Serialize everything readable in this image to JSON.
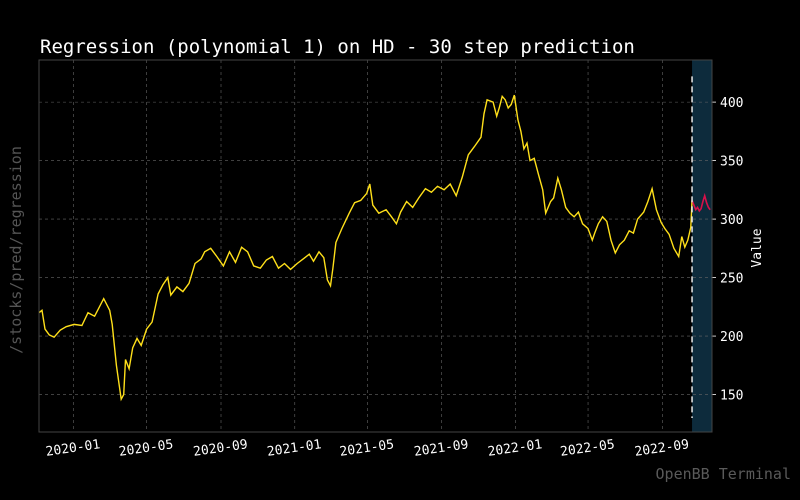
{
  "chart_data": {
    "type": "line",
    "title": "Regression (polynomial 1) on HD - 30 step prediction",
    "xlabel": "",
    "ylabel": "Value",
    "y_axis_position": "right",
    "ylim": [
      118,
      436
    ],
    "xlim": [
      "2019-11-05",
      "2022-11-22"
    ],
    "x_ticks": [
      "2020-01",
      "2020-05",
      "2020-09",
      "2021-01",
      "2021-05",
      "2021-09",
      "2022-01",
      "2022-05",
      "2022-09"
    ],
    "y_ticks": [
      150,
      200,
      250,
      300,
      350,
      400
    ],
    "grid": true,
    "prediction_start": "2022-10-20",
    "colors": {
      "background": "#000000",
      "history": "#ffe01a",
      "prediction": "#d8104a",
      "forecast_band": "#0d2b3c",
      "grid": "#555555",
      "text": "#ffffff",
      "watermark": "#5a5a5a"
    },
    "series": [
      {
        "role": "history",
        "points": [
          [
            "2019-11-05",
            220
          ],
          [
            "2019-11-10",
            222
          ],
          [
            "2019-11-15",
            206
          ],
          [
            "2019-11-22",
            201
          ],
          [
            "2019-11-30",
            199
          ],
          [
            "2019-12-10",
            205
          ],
          [
            "2019-12-20",
            208
          ],
          [
            "2020-01-02",
            210
          ],
          [
            "2020-01-15",
            209
          ],
          [
            "2020-01-25",
            220
          ],
          [
            "2020-02-05",
            217
          ],
          [
            "2020-02-20",
            232
          ],
          [
            "2020-03-01",
            222
          ],
          [
            "2020-03-05",
            210
          ],
          [
            "2020-03-12",
            175
          ],
          [
            "2020-03-20",
            146
          ],
          [
            "2020-03-24",
            150
          ],
          [
            "2020-03-27",
            180
          ],
          [
            "2020-04-02",
            172
          ],
          [
            "2020-04-08",
            190
          ],
          [
            "2020-04-15",
            198
          ],
          [
            "2020-04-22",
            192
          ],
          [
            "2020-05-01",
            206
          ],
          [
            "2020-05-10",
            212
          ],
          [
            "2020-05-20",
            236
          ],
          [
            "2020-05-28",
            244
          ],
          [
            "2020-06-05",
            250
          ],
          [
            "2020-06-10",
            235
          ],
          [
            "2020-06-20",
            242
          ],
          [
            "2020-06-30",
            238
          ],
          [
            "2020-07-10",
            245
          ],
          [
            "2020-07-20",
            262
          ],
          [
            "2020-07-30",
            266
          ],
          [
            "2020-08-05",
            272
          ],
          [
            "2020-08-15",
            275
          ],
          [
            "2020-08-25",
            268
          ],
          [
            "2020-09-05",
            260
          ],
          [
            "2020-09-15",
            272
          ],
          [
            "2020-09-25",
            263
          ],
          [
            "2020-10-05",
            276
          ],
          [
            "2020-10-15",
            272
          ],
          [
            "2020-10-25",
            260
          ],
          [
            "2020-11-05",
            258
          ],
          [
            "2020-11-15",
            265
          ],
          [
            "2020-11-25",
            268
          ],
          [
            "2020-12-05",
            258
          ],
          [
            "2020-12-15",
            262
          ],
          [
            "2020-12-25",
            257
          ],
          [
            "2021-01-05",
            262
          ],
          [
            "2021-01-15",
            266
          ],
          [
            "2021-01-25",
            270
          ],
          [
            "2021-02-01",
            264
          ],
          [
            "2021-02-10",
            272
          ],
          [
            "2021-02-18",
            267
          ],
          [
            "2021-02-24",
            248
          ],
          [
            "2021-03-01",
            243
          ],
          [
            "2021-03-05",
            258
          ],
          [
            "2021-03-10",
            280
          ],
          [
            "2021-03-20",
            292
          ],
          [
            "2021-04-01",
            305
          ],
          [
            "2021-04-10",
            314
          ],
          [
            "2021-04-20",
            316
          ],
          [
            "2021-04-30",
            322
          ],
          [
            "2021-05-05",
            330
          ],
          [
            "2021-05-10",
            312
          ],
          [
            "2021-05-20",
            305
          ],
          [
            "2021-06-01",
            308
          ],
          [
            "2021-06-10",
            302
          ],
          [
            "2021-06-18",
            296
          ],
          [
            "2021-06-25",
            306
          ],
          [
            "2021-07-05",
            315
          ],
          [
            "2021-07-15",
            310
          ],
          [
            "2021-07-25",
            318
          ],
          [
            "2021-08-05",
            326
          ],
          [
            "2021-08-15",
            323
          ],
          [
            "2021-08-25",
            328
          ],
          [
            "2021-09-05",
            325
          ],
          [
            "2021-09-15",
            330
          ],
          [
            "2021-09-25",
            320
          ],
          [
            "2021-10-05",
            336
          ],
          [
            "2021-10-15",
            355
          ],
          [
            "2021-10-25",
            362
          ],
          [
            "2021-11-05",
            370
          ],
          [
            "2021-11-10",
            390
          ],
          [
            "2021-11-15",
            402
          ],
          [
            "2021-11-25",
            400
          ],
          [
            "2021-12-01",
            388
          ],
          [
            "2021-12-05",
            395
          ],
          [
            "2021-12-10",
            405
          ],
          [
            "2021-12-15",
            402
          ],
          [
            "2021-12-20",
            395
          ],
          [
            "2021-12-25",
            398
          ],
          [
            "2021-12-30",
            406
          ],
          [
            "2022-01-05",
            385
          ],
          [
            "2022-01-10",
            375
          ],
          [
            "2022-01-15",
            360
          ],
          [
            "2022-01-20",
            365
          ],
          [
            "2022-01-25",
            350
          ],
          [
            "2022-02-01",
            352
          ],
          [
            "2022-02-08",
            338
          ],
          [
            "2022-02-15",
            325
          ],
          [
            "2022-02-20",
            305
          ],
          [
            "2022-02-28",
            315
          ],
          [
            "2022-03-05",
            318
          ],
          [
            "2022-03-12",
            335
          ],
          [
            "2022-03-18",
            325
          ],
          [
            "2022-03-25",
            310
          ],
          [
            "2022-04-01",
            305
          ],
          [
            "2022-04-08",
            302
          ],
          [
            "2022-04-15",
            306
          ],
          [
            "2022-04-22",
            296
          ],
          [
            "2022-05-01",
            292
          ],
          [
            "2022-05-08",
            282
          ],
          [
            "2022-05-12",
            288
          ],
          [
            "2022-05-18",
            296
          ],
          [
            "2022-05-25",
            302
          ],
          [
            "2022-06-01",
            298
          ],
          [
            "2022-06-08",
            282
          ],
          [
            "2022-06-15",
            271
          ],
          [
            "2022-06-22",
            278
          ],
          [
            "2022-06-30",
            282
          ],
          [
            "2022-07-08",
            290
          ],
          [
            "2022-07-15",
            288
          ],
          [
            "2022-07-22",
            300
          ],
          [
            "2022-08-01",
            306
          ],
          [
            "2022-08-08",
            315
          ],
          [
            "2022-08-15",
            326
          ],
          [
            "2022-08-22",
            308
          ],
          [
            "2022-08-30",
            297
          ],
          [
            "2022-09-05",
            292
          ],
          [
            "2022-09-12",
            287
          ],
          [
            "2022-09-20",
            275
          ],
          [
            "2022-09-28",
            268
          ],
          [
            "2022-10-03",
            285
          ],
          [
            "2022-10-08",
            276
          ],
          [
            "2022-10-13",
            282
          ],
          [
            "2022-10-18",
            293
          ],
          [
            "2022-10-20",
            316
          ]
        ]
      },
      {
        "role": "prediction",
        "points": [
          [
            "2022-10-20",
            316
          ],
          [
            "2022-10-23",
            312
          ],
          [
            "2022-10-26",
            308
          ],
          [
            "2022-10-29",
            310
          ],
          [
            "2022-11-01",
            307
          ],
          [
            "2022-11-04",
            309
          ],
          [
            "2022-11-07",
            315
          ],
          [
            "2022-11-10",
            320
          ],
          [
            "2022-11-13",
            314
          ],
          [
            "2022-11-16",
            310
          ],
          [
            "2022-11-19",
            308
          ]
        ]
      }
    ]
  },
  "labels": {
    "y_axis": "Value",
    "left_side": "/stocks/pred/regression",
    "watermark": "OpenBB Terminal"
  }
}
